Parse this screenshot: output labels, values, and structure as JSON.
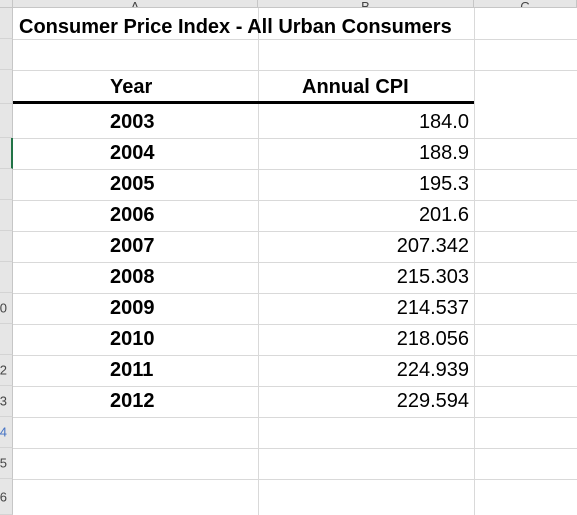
{
  "columns": [
    "A",
    "B",
    "C"
  ],
  "rows": [
    "",
    "",
    "",
    "",
    "",
    "",
    "",
    "",
    "",
    "0",
    "",
    "2",
    "3",
    "4",
    "5",
    "6"
  ],
  "sheet": {
    "title": "Consumer Price Index - All Urban Consumers",
    "table": {
      "headers": [
        "Year",
        "Annual CPI"
      ],
      "rows": [
        {
          "year": "2003",
          "cpi": "184.0"
        },
        {
          "year": "2004",
          "cpi": "188.9"
        },
        {
          "year": "2005",
          "cpi": "195.3"
        },
        {
          "year": "2006",
          "cpi": "201.6"
        },
        {
          "year": "2007",
          "cpi": "207.342"
        },
        {
          "year": "2008",
          "cpi": "215.303"
        },
        {
          "year": "2009",
          "cpi": "214.537"
        },
        {
          "year": "2010",
          "cpi": "218.056"
        },
        {
          "year": "2011",
          "cpi": "224.939"
        },
        {
          "year": "2012",
          "cpi": "229.594"
        }
      ]
    }
  }
}
